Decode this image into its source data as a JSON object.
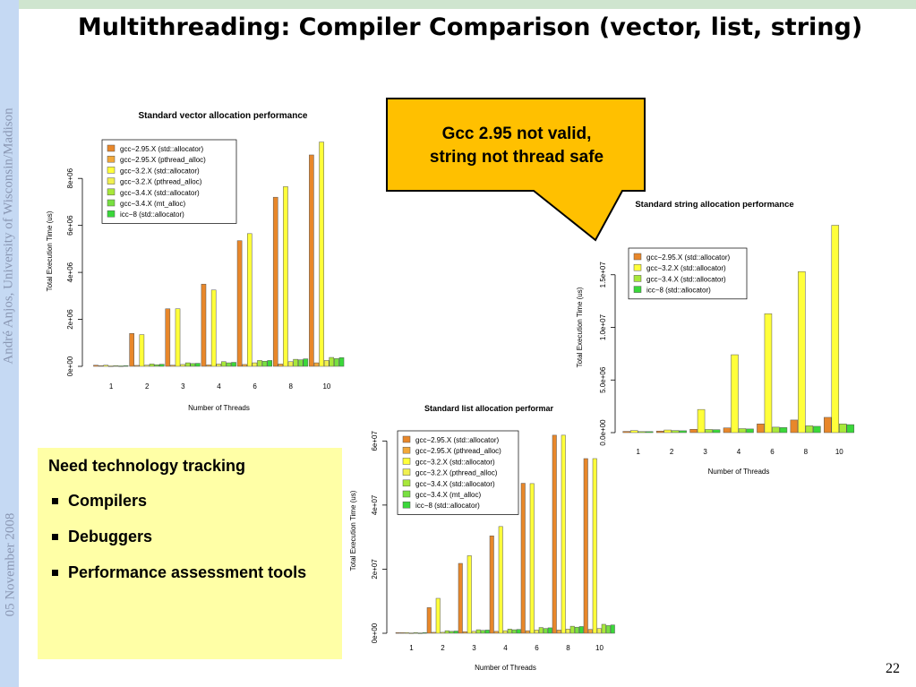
{
  "slide": {
    "title": "Multithreading: Compiler Comparison (vector, list, string)",
    "author_sidebar": "André Anjos, University of Wisconsin/Madison",
    "date_sidebar": "05 November 2008",
    "page_number": "22",
    "callout": {
      "line1": "Gcc 2.95 not valid,",
      "line2": "string not thread safe"
    },
    "notes": {
      "heading": "Need technology tracking",
      "items": [
        {
          "label": "Compilers"
        },
        {
          "label": "Debuggers"
        },
        {
          "label": "Performance assessment tools"
        }
      ]
    }
  },
  "colors": {
    "top_band": "#cfe5cf",
    "left_bar": "#c5d9f3",
    "callout_fill": "#ffc000",
    "notes_fill": "#ffffa6",
    "series": [
      "#e8872a",
      "#f2a83a",
      "#ffff3a",
      "#f0f050",
      "#a8e83a",
      "#78e040",
      "#3ad83a"
    ]
  },
  "chart_data": [
    {
      "type": "bar",
      "title": "Standard vector allocation performance",
      "xlabel": "Number of Threads",
      "ylabel": "Total Execution Time (us)",
      "categories": [
        "1",
        "2",
        "3",
        "4",
        "6",
        "8",
        "10"
      ],
      "ylim": [
        0,
        9800000
      ],
      "yticks": [
        0,
        2000000,
        4000000,
        6000000,
        8000000
      ],
      "ytick_labels": [
        "0e+00",
        "2e+06",
        "4e+06",
        "6e+06",
        "8e+06"
      ],
      "legend_position": "top-left",
      "series": [
        {
          "name": "gcc−2.95.X (std::allocator)",
          "color": "#e8872a",
          "values": [
            50000,
            1400000,
            2450000,
            3500000,
            5350000,
            7200000,
            9000000
          ]
        },
        {
          "name": "gcc−2.95.X (pthread_alloc)",
          "color": "#f2a83a",
          "values": [
            30000,
            40000,
            50000,
            60000,
            80000,
            100000,
            150000
          ]
        },
        {
          "name": "gcc−3.2.X (std::allocator)",
          "color": "#ffff3a",
          "values": [
            50000,
            1350000,
            2450000,
            3250000,
            5650000,
            7650000,
            9550000
          ]
        },
        {
          "name": "gcc−3.2.X (pthread_alloc)",
          "color": "#f0f050",
          "values": [
            20000,
            50000,
            80000,
            100000,
            150000,
            200000,
            250000
          ]
        },
        {
          "name": "gcc−3.4.X (std::allocator)",
          "color": "#a8e83a",
          "values": [
            30000,
            100000,
            150000,
            200000,
            250000,
            300000,
            380000
          ]
        },
        {
          "name": "gcc−3.4.X (mt_alloc)",
          "color": "#78e040",
          "values": [
            20000,
            70000,
            120000,
            150000,
            220000,
            280000,
            330000
          ]
        },
        {
          "name": "icc−8 (std::allocator)",
          "color": "#3ad83a",
          "values": [
            30000,
            90000,
            130000,
            170000,
            250000,
            320000,
            370000
          ]
        }
      ]
    },
    {
      "type": "bar",
      "title": "Standard string allocation performance",
      "xlabel": "Number of Threads",
      "ylabel": "Total Execution Time (us)",
      "categories": [
        "1",
        "2",
        "3",
        "4",
        "6",
        "8",
        "10"
      ],
      "ylim": [
        0,
        20000000
      ],
      "yticks": [
        0,
        5000000,
        10000000,
        15000000
      ],
      "ytick_labels": [
        "0.0e+00",
        "5.0e+06",
        "1.0e+07",
        "1.5e+07"
      ],
      "legend_position": "top-left",
      "series": [
        {
          "name": "gcc−2.95.X (std::allocator)",
          "color": "#e8872a",
          "values": [
            120000,
            150000,
            320000,
            450000,
            830000,
            1200000,
            1450000
          ]
        },
        {
          "name": "gcc−3.2.X (std::allocator)",
          "color": "#ffff3a",
          "values": [
            200000,
            250000,
            2200000,
            7400000,
            11300000,
            15300000,
            19700000
          ]
        },
        {
          "name": "gcc−3.4.X (std::allocator)",
          "color": "#a8e83a",
          "values": [
            100000,
            200000,
            300000,
            380000,
            520000,
            650000,
            830000
          ]
        },
        {
          "name": "icc−8 (std::allocator)",
          "color": "#3ad83a",
          "values": [
            100000,
            180000,
            280000,
            350000,
            480000,
            600000,
            760000
          ]
        }
      ]
    },
    {
      "type": "bar",
      "title": "Standard list allocation performar",
      "xlabel": "Number of Threads",
      "ylabel": "Total Execution Time (us)",
      "categories": [
        "1",
        "2",
        "3",
        "4",
        "6",
        "8",
        "10"
      ],
      "ylim": [
        0,
        64000000
      ],
      "yticks": [
        0,
        20000000,
        40000000,
        60000000
      ],
      "ytick_labels": [
        "0e+00",
        "2e+07",
        "4e+07",
        "6e+07"
      ],
      "legend_position": "top-left",
      "series": [
        {
          "name": "gcc−2.95.X (std::allocator)",
          "color": "#e8872a",
          "values": [
            200000,
            8000000,
            21800000,
            30400000,
            46800000,
            61800000,
            54500000
          ]
        },
        {
          "name": "gcc−2.95.X (pthread_alloc)",
          "color": "#f2a83a",
          "values": [
            200000,
            300000,
            500000,
            600000,
            800000,
            1000000,
            1200000
          ]
        },
        {
          "name": "gcc−3.2.X (std::allocator)",
          "color": "#ffff3a",
          "values": [
            200000,
            10900000,
            24200000,
            33300000,
            46700000,
            61800000,
            54500000
          ]
        },
        {
          "name": "gcc−3.2.X (pthread_alloc)",
          "color": "#f0f050",
          "values": [
            100000,
            300000,
            600000,
            800000,
            1000000,
            1300000,
            1500000
          ]
        },
        {
          "name": "gcc−3.4.X (std::allocator)",
          "color": "#a8e83a",
          "values": [
            200000,
            800000,
            1100000,
            1300000,
            1800000,
            2200000,
            2800000
          ]
        },
        {
          "name": "gcc−3.4.X (mt_alloc)",
          "color": "#78e040",
          "values": [
            100000,
            600000,
            900000,
            1100000,
            1500000,
            1900000,
            2400000
          ]
        },
        {
          "name": "icc−8 (std::allocator)",
          "color": "#3ad83a",
          "values": [
            200000,
            700000,
            1000000,
            1200000,
            1700000,
            2100000,
            2600000
          ]
        }
      ]
    }
  ]
}
